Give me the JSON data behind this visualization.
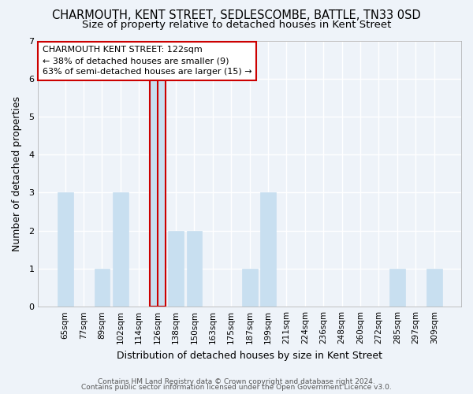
{
  "title": "CHARMOUTH, KENT STREET, SEDLESCOMBE, BATTLE, TN33 0SD",
  "subtitle": "Size of property relative to detached houses in Kent Street",
  "xlabel": "Distribution of detached houses by size in Kent Street",
  "ylabel": "Number of detached properties",
  "bar_color": "#c8dff0",
  "bar_edge_color": "#c8dff0",
  "highlight_color": "#cc0000",
  "categories": [
    "65sqm",
    "77sqm",
    "89sqm",
    "102sqm",
    "114sqm",
    "126sqm",
    "138sqm",
    "150sqm",
    "163sqm",
    "175sqm",
    "187sqm",
    "199sqm",
    "211sqm",
    "224sqm",
    "236sqm",
    "248sqm",
    "260sqm",
    "272sqm",
    "285sqm",
    "297sqm",
    "309sqm"
  ],
  "values": [
    3,
    0,
    1,
    3,
    0,
    6,
    2,
    2,
    0,
    0,
    1,
    3,
    0,
    0,
    0,
    0,
    0,
    0,
    1,
    0,
    1
  ],
  "highlight_bar_index": 5,
  "red_line_index": 5,
  "annotation_title": "CHARMOUTH KENT STREET: 122sqm",
  "annotation_line1": "← 38% of detached houses are smaller (9)",
  "annotation_line2": "63% of semi-detached houses are larger (15) →",
  "ylim": [
    0,
    7
  ],
  "yticks": [
    0,
    1,
    2,
    3,
    4,
    5,
    6,
    7
  ],
  "footer1": "Contains HM Land Registry data © Crown copyright and database right 2024.",
  "footer2": "Contains public sector information licensed under the Open Government Licence v3.0.",
  "background_color": "#eef3f9",
  "grid_color": "#ffffff",
  "title_fontsize": 10.5,
  "subtitle_fontsize": 9.5,
  "annotation_box_edge": "#cc0000",
  "ann_box_facecolor": "#ffffff"
}
